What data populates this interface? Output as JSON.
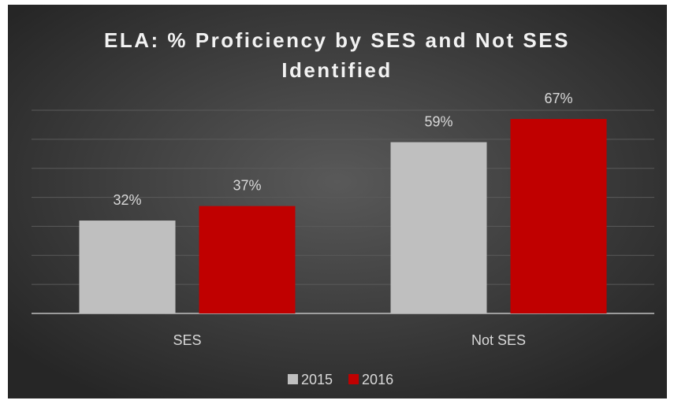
{
  "chart_data": {
    "type": "bar",
    "title": "ELA:  % Proficiency by SES and Not SES Identified",
    "categories": [
      "SES",
      "Not SES"
    ],
    "series": [
      {
        "name": "2015",
        "color": "#bfbfbf",
        "values": [
          32,
          59
        ],
        "value_labels": [
          "32%",
          "59%"
        ]
      },
      {
        "name": "2016",
        "color": "#c00000",
        "values": [
          37,
          67
        ],
        "value_labels": [
          "37%",
          "67%"
        ]
      }
    ],
    "ylim": [
      0,
      70
    ],
    "yticks": [
      0,
      10,
      20,
      30,
      40,
      50,
      60,
      70
    ],
    "grid": true,
    "legend": "bottom"
  }
}
